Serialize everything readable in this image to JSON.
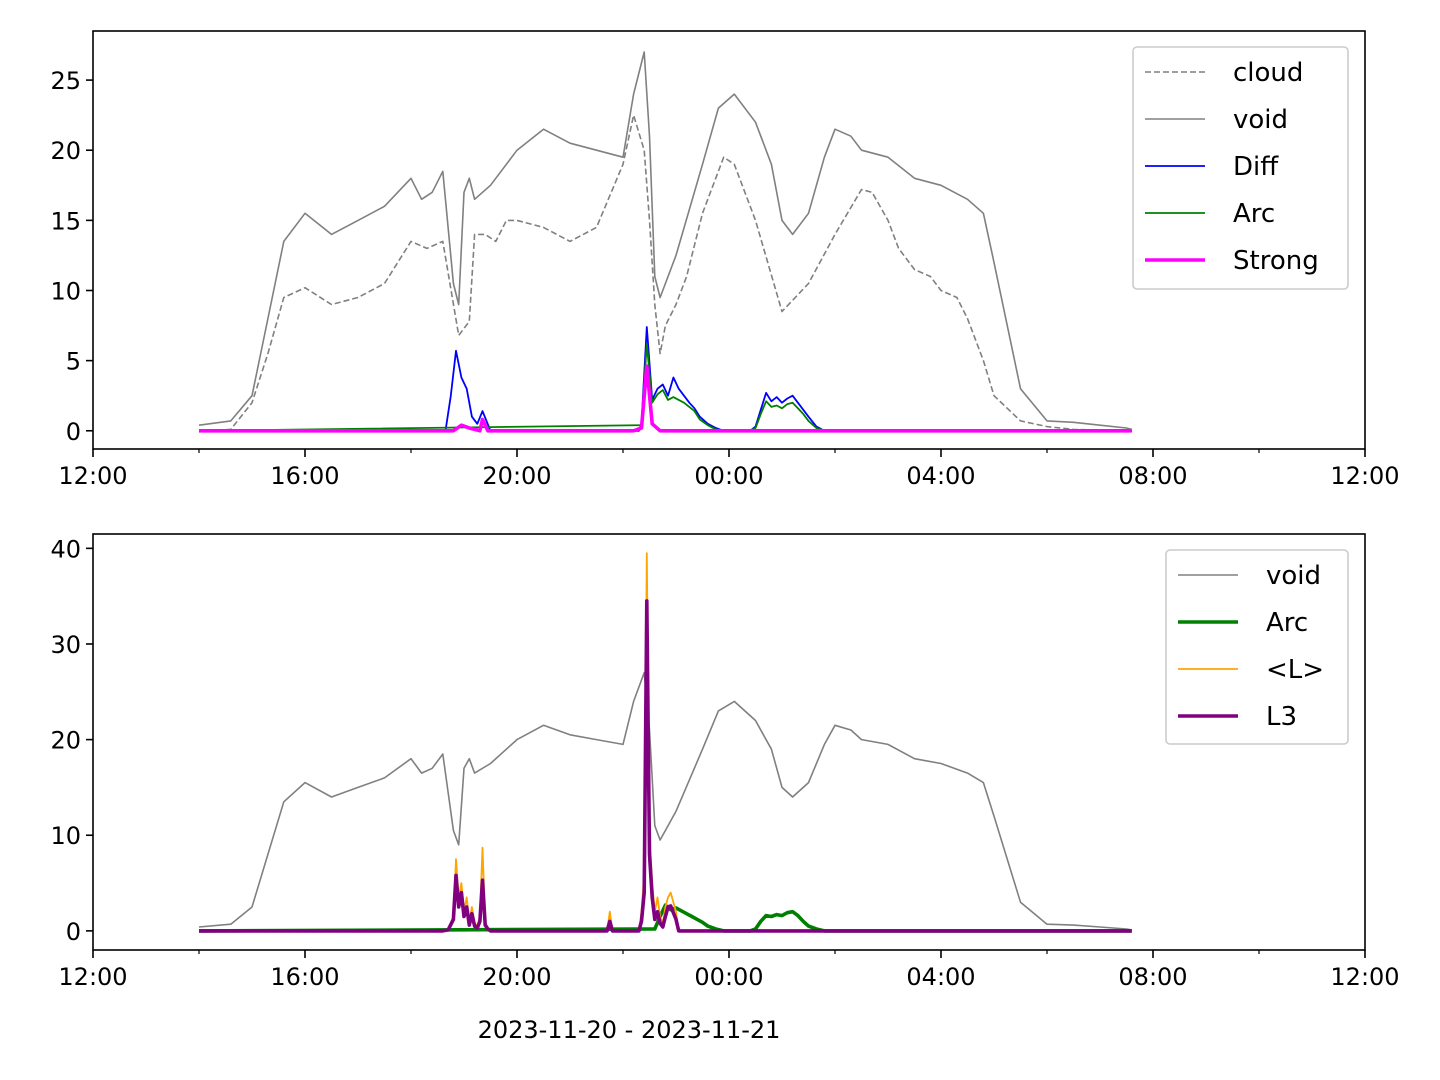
{
  "chart_data": [
    {
      "type": "line",
      "x_axis": {
        "ticks": [
          "12:00",
          "16:00",
          "20:00",
          "00:00",
          "04:00",
          "08:00",
          "12:00"
        ],
        "minor_ticks_per_major": 1
      },
      "y_axis": {
        "ylim": [
          -1.3,
          28.5
        ],
        "ticks": [
          "0",
          "5",
          "10",
          "15",
          "20",
          "25"
        ]
      },
      "legend": {
        "placement": "top-right",
        "entries": [
          "cloud",
          "void",
          "Diff",
          "Arc",
          "Strong"
        ]
      },
      "grid": false,
      "series": [
        {
          "name": "cloud",
          "color": "#808080",
          "style": "dashed",
          "width": 1.6,
          "x": [
            2.0,
            2.6,
            3.0,
            3.3,
            3.6,
            4.0,
            4.5,
            5.0,
            5.5,
            6.0,
            6.3,
            6.6,
            6.9,
            7.1,
            7.2,
            7.4,
            7.6,
            7.8,
            8.0,
            8.5,
            9.0,
            9.5,
            10.0,
            10.2,
            10.4,
            10.5,
            10.6,
            10.7,
            10.8,
            11.0,
            11.2,
            11.5,
            11.9,
            12.1,
            12.5,
            13.0,
            13.5,
            14.0,
            14.5,
            14.7,
            15.0,
            15.2,
            15.5,
            15.8,
            16.0,
            16.3,
            16.5,
            16.8,
            17.0,
            17.5,
            18.0,
            18.5,
            19.0,
            19.5,
            19.6
          ],
          "y": [
            0.0,
            0.1,
            2.0,
            5.5,
            9.5,
            10.2,
            9.0,
            9.5,
            10.5,
            13.5,
            13.0,
            13.5,
            6.8,
            7.8,
            14.0,
            14.0,
            13.5,
            15.0,
            15.0,
            14.5,
            13.5,
            14.5,
            19.0,
            22.5,
            20.0,
            15.0,
            9.0,
            5.5,
            7.5,
            9.0,
            11.0,
            15.5,
            19.5,
            19.0,
            15.0,
            8.5,
            10.5,
            14.0,
            17.2,
            17.0,
            15.0,
            13.0,
            11.5,
            11.0,
            10.0,
            9.5,
            8.0,
            5.0,
            2.5,
            0.7,
            0.3,
            0.1,
            0.05,
            0.0,
            0.0
          ]
        },
        {
          "name": "void",
          "color": "#808080",
          "style": "solid",
          "width": 1.6,
          "x": [
            2.0,
            2.6,
            3.0,
            3.3,
            3.6,
            4.0,
            4.5,
            5.0,
            5.5,
            6.0,
            6.2,
            6.4,
            6.6,
            6.8,
            6.9,
            7.0,
            7.1,
            7.2,
            7.5,
            8.0,
            8.5,
            9.0,
            9.5,
            10.0,
            10.2,
            10.4,
            10.5,
            10.6,
            10.7,
            10.8,
            11.0,
            11.5,
            11.8,
            12.1,
            12.5,
            12.8,
            13.0,
            13.2,
            13.5,
            13.8,
            14.0,
            14.3,
            14.5,
            15.0,
            15.5,
            16.0,
            16.5,
            16.8,
            17.0,
            17.5,
            18.0,
            18.5,
            19.0,
            19.5,
            19.6
          ],
          "y": [
            0.4,
            0.7,
            2.5,
            8.0,
            13.5,
            15.5,
            14.0,
            15.0,
            16.0,
            18.0,
            16.5,
            17.0,
            18.5,
            10.5,
            9.0,
            17.0,
            18.0,
            16.5,
            17.5,
            20.0,
            21.5,
            20.5,
            20.0,
            19.5,
            24.0,
            27.0,
            21.0,
            11.0,
            9.5,
            10.5,
            12.5,
            19.0,
            23.0,
            24.0,
            22.0,
            19.0,
            15.0,
            14.0,
            15.5,
            19.5,
            21.5,
            21.0,
            20.0,
            19.5,
            18.0,
            17.5,
            16.5,
            15.5,
            12.0,
            3.0,
            0.7,
            0.6,
            0.4,
            0.2,
            0.1
          ]
        },
        {
          "name": "Diff",
          "color": "#0000ff",
          "style": "solid",
          "width": 1.8,
          "x": [
            2.0,
            6.65,
            6.75,
            6.85,
            6.95,
            7.05,
            7.15,
            7.25,
            7.35,
            7.5,
            10.0,
            10.3,
            10.35,
            10.45,
            10.55,
            10.65,
            10.75,
            10.85,
            10.95,
            11.05,
            11.15,
            11.25,
            11.35,
            11.45,
            11.6,
            11.75,
            11.9,
            12.4,
            12.5,
            12.6,
            12.7,
            12.8,
            12.9,
            13.0,
            13.1,
            13.2,
            13.3,
            13.4,
            13.5,
            13.65,
            13.8,
            19.6
          ],
          "y": [
            0.0,
            0.0,
            2.5,
            5.7,
            3.8,
            3.0,
            1.0,
            0.5,
            1.4,
            0.0,
            0.0,
            0.0,
            0.5,
            7.4,
            2.2,
            3.0,
            3.3,
            2.5,
            3.8,
            3.0,
            2.5,
            2.0,
            1.6,
            1.0,
            0.5,
            0.2,
            0.0,
            0.0,
            0.3,
            1.5,
            2.7,
            2.1,
            2.4,
            2.0,
            2.3,
            2.5,
            2.0,
            1.5,
            1.0,
            0.3,
            0.0,
            0.0
          ]
        },
        {
          "name": "Arc",
          "color": "#008000",
          "style": "solid",
          "width": 1.8,
          "x": [
            2.0,
            10.35,
            10.45,
            10.55,
            10.65,
            10.75,
            10.85,
            10.95,
            11.05,
            11.15,
            11.25,
            11.35,
            11.45,
            11.6,
            11.75,
            11.9,
            12.4,
            12.5,
            12.6,
            12.7,
            12.8,
            12.9,
            13.0,
            13.1,
            13.2,
            13.3,
            13.4,
            13.5,
            13.65,
            13.8,
            19.6
          ],
          "y": [
            0.0,
            0.4,
            6.2,
            2.0,
            2.6,
            2.9,
            2.2,
            2.4,
            2.2,
            2.0,
            1.7,
            1.4,
            0.8,
            0.4,
            0.1,
            0.0,
            0.0,
            0.2,
            1.2,
            2.1,
            1.7,
            1.8,
            1.6,
            1.9,
            2.0,
            1.6,
            1.2,
            0.7,
            0.2,
            0.0,
            0.0
          ]
        },
        {
          "name": "Strong",
          "color": "#ff00ff",
          "style": "solid",
          "width": 3.6,
          "x": [
            2.0,
            6.8,
            6.95,
            7.1,
            7.3,
            7.35,
            7.45,
            10.2,
            10.35,
            10.45,
            10.55,
            10.7,
            19.6
          ],
          "y": [
            0.0,
            0.0,
            0.4,
            0.2,
            0.0,
            0.8,
            0.0,
            0.0,
            0.2,
            4.6,
            0.5,
            0.0,
            0.0
          ]
        }
      ]
    },
    {
      "type": "line",
      "x_axis": {
        "ticks": [
          "12:00",
          "16:00",
          "20:00",
          "00:00",
          "04:00",
          "08:00",
          "12:00"
        ],
        "minor_ticks_per_major": 1,
        "xlabel": "2023-11-20 - 2023-11-21"
      },
      "y_axis": {
        "ylim": [
          -2,
          41.5
        ],
        "ticks": [
          "0",
          "10",
          "20",
          "30",
          "40"
        ]
      },
      "legend": {
        "placement": "top-right",
        "entries": [
          "void",
          "Arc",
          "<L>",
          "L3"
        ]
      },
      "grid": false,
      "series": [
        {
          "name": "void",
          "color": "#808080",
          "style": "solid",
          "width": 1.6,
          "x": [
            2.0,
            2.6,
            3.0,
            3.3,
            3.6,
            4.0,
            4.5,
            5.0,
            5.5,
            6.0,
            6.2,
            6.4,
            6.6,
            6.8,
            6.9,
            7.0,
            7.1,
            7.2,
            7.5,
            8.0,
            8.5,
            9.0,
            9.5,
            10.0,
            10.2,
            10.4,
            10.5,
            10.6,
            10.7,
            10.8,
            11.0,
            11.5,
            11.8,
            12.1,
            12.5,
            12.8,
            13.0,
            13.2,
            13.5,
            13.8,
            14.0,
            14.3,
            14.5,
            15.0,
            15.5,
            16.0,
            16.5,
            16.8,
            17.0,
            17.5,
            18.0,
            18.5,
            19.0,
            19.5,
            19.6
          ],
          "y": [
            0.4,
            0.7,
            2.5,
            8.0,
            13.5,
            15.5,
            14.0,
            15.0,
            16.0,
            18.0,
            16.5,
            17.0,
            18.5,
            10.5,
            9.0,
            17.0,
            18.0,
            16.5,
            17.5,
            20.0,
            21.5,
            20.5,
            20.0,
            19.5,
            24.0,
            27.0,
            21.0,
            11.0,
            9.5,
            10.5,
            12.5,
            19.0,
            23.0,
            24.0,
            22.0,
            19.0,
            15.0,
            14.0,
            15.5,
            19.5,
            21.5,
            21.0,
            20.0,
            19.5,
            18.0,
            17.5,
            16.5,
            15.5,
            12.0,
            3.0,
            0.7,
            0.6,
            0.4,
            0.2,
            0.1
          ]
        },
        {
          "name": "Arc",
          "color": "#008000",
          "style": "solid",
          "width": 3.6,
          "x": [
            2.0,
            10.6,
            10.7,
            10.8,
            10.9,
            11.0,
            11.1,
            11.2,
            11.3,
            11.4,
            11.5,
            11.6,
            11.75,
            11.9,
            12.4,
            12.5,
            12.6,
            12.7,
            12.8,
            12.9,
            13.0,
            13.1,
            13.2,
            13.3,
            13.4,
            13.5,
            13.65,
            13.8,
            19.6
          ],
          "y": [
            0.0,
            0.2,
            1.5,
            2.7,
            2.2,
            2.4,
            2.1,
            1.8,
            1.5,
            1.2,
            0.9,
            0.5,
            0.2,
            0.0,
            0.0,
            0.2,
            1.0,
            1.6,
            1.5,
            1.7,
            1.6,
            1.9,
            2.0,
            1.6,
            1.0,
            0.5,
            0.2,
            0.0,
            0.0
          ]
        },
        {
          "name": "<L>",
          "color": "#ffa500",
          "style": "solid",
          "width": 1.8,
          "x": [
            2.0,
            6.6,
            6.7,
            6.8,
            6.85,
            6.9,
            6.95,
            7.0,
            7.05,
            7.1,
            7.15,
            7.2,
            7.25,
            7.3,
            7.35,
            7.4,
            7.45,
            7.5,
            9.7,
            9.75,
            9.8,
            10.3,
            10.35,
            10.4,
            10.45,
            10.5,
            10.55,
            10.6,
            10.65,
            10.7,
            10.75,
            10.8,
            10.85,
            10.9,
            11.0,
            11.05,
            19.6
          ],
          "y": [
            0.0,
            0.0,
            0.2,
            1.5,
            7.5,
            3.5,
            5.0,
            2.0,
            3.5,
            1.0,
            2.5,
            0.8,
            0.5,
            1.5,
            8.7,
            1.0,
            0.3,
            0.0,
            0.0,
            2.0,
            0.0,
            0.0,
            2.0,
            6.0,
            39.5,
            10.0,
            5.0,
            2.0,
            3.5,
            1.5,
            0.8,
            2.5,
            3.5,
            4.0,
            2.0,
            0.0,
            0.0
          ]
        },
        {
          "name": "L3",
          "color": "#800080",
          "style": "solid",
          "width": 3.6,
          "x": [
            2.0,
            6.6,
            6.7,
            6.8,
            6.85,
            6.9,
            6.95,
            7.0,
            7.05,
            7.1,
            7.15,
            7.2,
            7.25,
            7.3,
            7.35,
            7.4,
            7.45,
            7.5,
            9.7,
            9.75,
            9.8,
            10.3,
            10.35,
            10.4,
            10.45,
            10.5,
            10.55,
            10.6,
            10.65,
            10.7,
            10.75,
            10.8,
            10.85,
            10.9,
            11.0,
            11.05,
            19.6
          ],
          "y": [
            0.0,
            0.0,
            0.1,
            1.2,
            5.8,
            2.5,
            4.0,
            1.5,
            2.5,
            0.6,
            1.8,
            0.5,
            0.3,
            1.0,
            5.3,
            0.6,
            0.2,
            0.0,
            0.0,
            1.0,
            0.0,
            0.0,
            1.0,
            4.0,
            34.5,
            8.0,
            3.5,
            1.2,
            2.0,
            0.8,
            0.4,
            1.5,
            2.5,
            2.6,
            1.2,
            0.0,
            0.0
          ]
        }
      ]
    }
  ]
}
